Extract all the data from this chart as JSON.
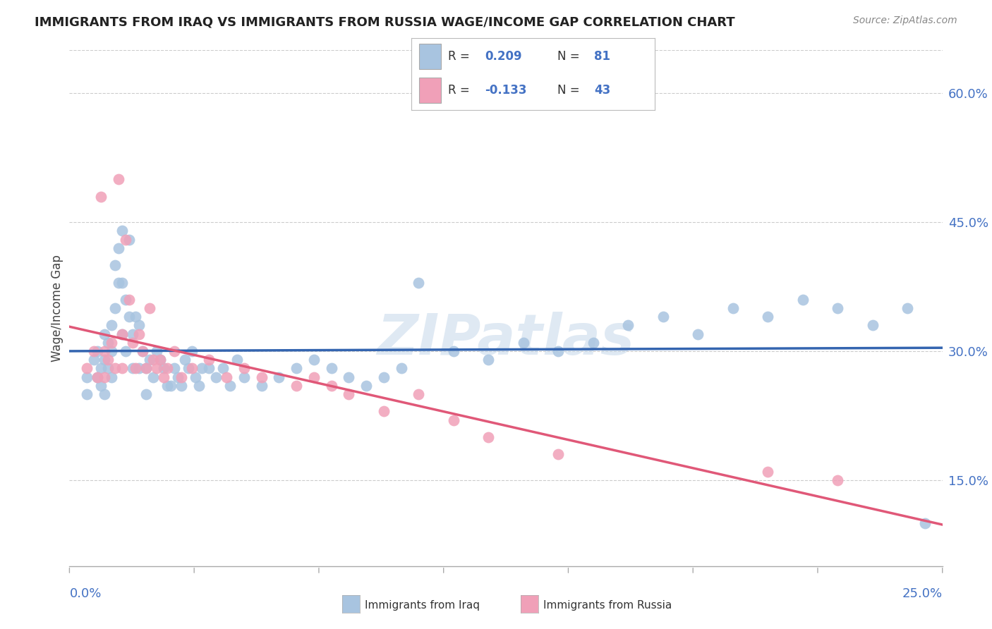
{
  "title": "IMMIGRANTS FROM IRAQ VS IMMIGRANTS FROM RUSSIA WAGE/INCOME GAP CORRELATION CHART",
  "source": "Source: ZipAtlas.com",
  "ylabel": "Wage/Income Gap",
  "right_yticks": [
    "60.0%",
    "45.0%",
    "30.0%",
    "15.0%"
  ],
  "right_ytick_vals": [
    0.6,
    0.45,
    0.3,
    0.15
  ],
  "xlim": [
    0.0,
    0.25
  ],
  "ylim": [
    0.05,
    0.65
  ],
  "legend_iraq_R": "0.209",
  "legend_iraq_N": "81",
  "legend_russia_R": "-0.133",
  "legend_russia_N": "43",
  "iraq_color": "#a8c4e0",
  "russia_color": "#f0a0b8",
  "iraq_line_color": "#3465b0",
  "russia_line_color": "#e05878",
  "background_color": "#ffffff",
  "grid_color": "#cccccc",
  "watermark": "ZIPatlas",
  "iraq_x": [
    0.005,
    0.005,
    0.007,
    0.008,
    0.008,
    0.009,
    0.009,
    0.01,
    0.01,
    0.01,
    0.011,
    0.011,
    0.012,
    0.012,
    0.012,
    0.013,
    0.013,
    0.014,
    0.014,
    0.015,
    0.015,
    0.015,
    0.016,
    0.016,
    0.017,
    0.017,
    0.018,
    0.018,
    0.019,
    0.02,
    0.02,
    0.021,
    0.022,
    0.022,
    0.023,
    0.024,
    0.025,
    0.026,
    0.027,
    0.028,
    0.029,
    0.03,
    0.031,
    0.032,
    0.033,
    0.034,
    0.035,
    0.036,
    0.037,
    0.038,
    0.04,
    0.042,
    0.044,
    0.046,
    0.048,
    0.05,
    0.055,
    0.06,
    0.065,
    0.07,
    0.075,
    0.08,
    0.085,
    0.09,
    0.095,
    0.1,
    0.11,
    0.12,
    0.13,
    0.14,
    0.15,
    0.16,
    0.17,
    0.18,
    0.19,
    0.2,
    0.21,
    0.22,
    0.23,
    0.24,
    0.245
  ],
  "iraq_y": [
    0.27,
    0.25,
    0.29,
    0.3,
    0.27,
    0.28,
    0.26,
    0.32,
    0.29,
    0.25,
    0.31,
    0.28,
    0.33,
    0.3,
    0.27,
    0.4,
    0.35,
    0.42,
    0.38,
    0.44,
    0.38,
    0.32,
    0.36,
    0.3,
    0.43,
    0.34,
    0.32,
    0.28,
    0.34,
    0.33,
    0.28,
    0.3,
    0.28,
    0.25,
    0.29,
    0.27,
    0.3,
    0.29,
    0.28,
    0.26,
    0.26,
    0.28,
    0.27,
    0.26,
    0.29,
    0.28,
    0.3,
    0.27,
    0.26,
    0.28,
    0.28,
    0.27,
    0.28,
    0.26,
    0.29,
    0.27,
    0.26,
    0.27,
    0.28,
    0.29,
    0.28,
    0.27,
    0.26,
    0.27,
    0.28,
    0.38,
    0.3,
    0.29,
    0.31,
    0.3,
    0.31,
    0.33,
    0.34,
    0.32,
    0.35,
    0.34,
    0.36,
    0.35,
    0.33,
    0.35,
    0.1
  ],
  "russia_x": [
    0.005,
    0.007,
    0.008,
    0.009,
    0.01,
    0.01,
    0.011,
    0.012,
    0.013,
    0.014,
    0.015,
    0.015,
    0.016,
    0.017,
    0.018,
    0.019,
    0.02,
    0.021,
    0.022,
    0.023,
    0.024,
    0.025,
    0.026,
    0.027,
    0.028,
    0.03,
    0.032,
    0.035,
    0.04,
    0.045,
    0.05,
    0.055,
    0.065,
    0.07,
    0.075,
    0.08,
    0.09,
    0.1,
    0.11,
    0.12,
    0.14,
    0.2,
    0.22
  ],
  "russia_y": [
    0.28,
    0.3,
    0.27,
    0.48,
    0.3,
    0.27,
    0.29,
    0.31,
    0.28,
    0.5,
    0.32,
    0.28,
    0.43,
    0.36,
    0.31,
    0.28,
    0.32,
    0.3,
    0.28,
    0.35,
    0.29,
    0.28,
    0.29,
    0.27,
    0.28,
    0.3,
    0.27,
    0.28,
    0.29,
    0.27,
    0.28,
    0.27,
    0.26,
    0.27,
    0.26,
    0.25,
    0.23,
    0.25,
    0.22,
    0.2,
    0.18,
    0.16,
    0.15
  ]
}
